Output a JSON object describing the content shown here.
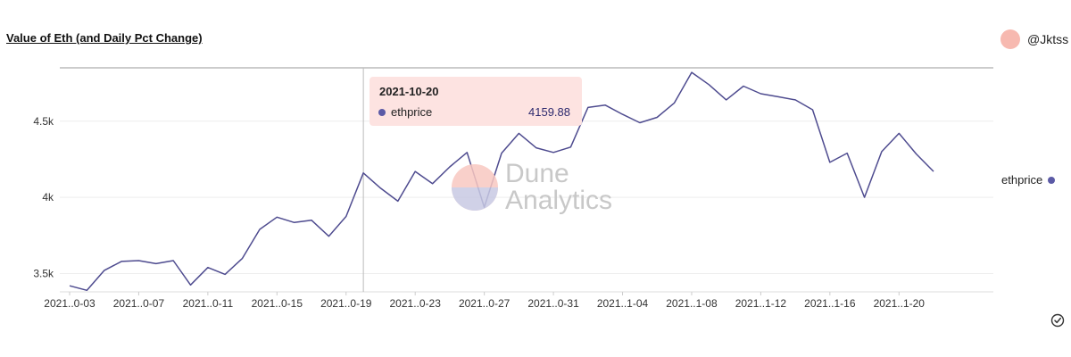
{
  "title": "Value of Eth (and Daily Pct Change)",
  "author": "@Jktss",
  "watermark": {
    "line1": "Dune",
    "line2": "Analytics"
  },
  "tooltip": {
    "date": "2021-10-20",
    "series": "ethprice",
    "value": "4159.88"
  },
  "colors": {
    "line": "#4e4b8f",
    "tooltip_bg": "#fde3e1",
    "avatar": "#f7b9b0",
    "legend_dot": "#5b5aa6"
  },
  "icons": {
    "checkmark": "check-circle-icon"
  },
  "chart_data": {
    "type": "line",
    "title": "Value of Eth (and Daily Pct Change)",
    "xlabel": "",
    "ylabel": "",
    "ylim": [
      3380,
      4850
    ],
    "yticks": [
      3500,
      4000,
      4500
    ],
    "ytick_labels": [
      "3.5k",
      "4k",
      "4.5k"
    ],
    "grid": true,
    "legend": "right",
    "x_tick_labels": [
      "2021..0-03",
      "2021..0-07",
      "2021..0-11",
      "2021..0-15",
      "2021..0-19",
      "2021..0-23",
      "2021..0-27",
      "2021..0-31",
      "2021..1-04",
      "2021..1-08",
      "2021..1-12",
      "2021..1-16",
      "2021..1-20"
    ],
    "highlight_index": 17,
    "series": [
      {
        "name": "ethprice",
        "values": [
          3420,
          3390,
          3520,
          3580,
          3585,
          3565,
          3585,
          3425,
          3540,
          3495,
          3600,
          3790,
          3870,
          3835,
          3850,
          3745,
          3875,
          4159.88,
          4060,
          3975,
          4170,
          4090,
          4200,
          4295,
          3935,
          4290,
          4420,
          4325,
          4295,
          4330,
          4590,
          4605,
          4545,
          4490,
          4525,
          4620,
          4820,
          4740,
          4640,
          4730,
          4680,
          4660,
          4640,
          4575,
          4230,
          4290,
          4000,
          4300,
          4420,
          4285,
          4170
        ]
      }
    ]
  }
}
